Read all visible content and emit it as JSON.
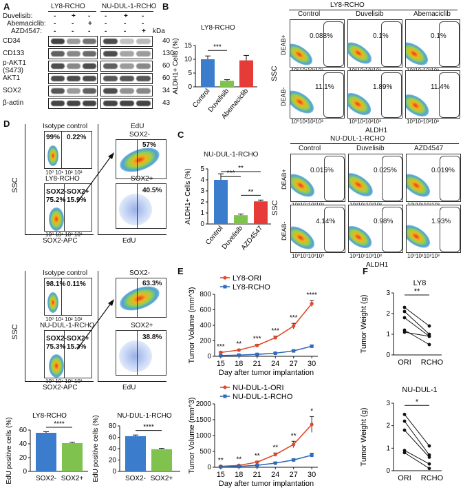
{
  "panels": {
    "a": "A",
    "b": "B",
    "c": "C",
    "d": "D",
    "e": "E",
    "f": "F"
  },
  "panelA": {
    "groups": [
      "LY8-RCHO",
      "NU-DUL-1-RCHO"
    ],
    "treatments": [
      {
        "label": "Duvelisib:",
        "marks": [
          "-",
          "+",
          "-",
          "-",
          "+",
          "-"
        ]
      },
      {
        "label": "Abemaciclib:",
        "marks": [
          "-",
          "-",
          "+",
          "-",
          "-",
          "-"
        ]
      },
      {
        "label": "AZD4547:",
        "marks": [
          "-",
          "-",
          "-",
          "-",
          "-",
          "+"
        ]
      }
    ],
    "kda_label": "kDa",
    "proteins": [
      {
        "name": "CD34",
        "kda": "40"
      },
      {
        "name": "CD133",
        "kda": "130"
      },
      {
        "name": "p-AKT1\n(S473)",
        "kda": "60"
      },
      {
        "name": "AKT1",
        "kda": "60"
      },
      {
        "name": "SOX2",
        "kda": "34"
      },
      {
        "name": "β-actin",
        "kda": "43"
      }
    ]
  },
  "panelB": {
    "bar": {
      "title": "LY8-RCHO",
      "ylabel": "ALDH1+ Cells (%)",
      "yticks": [
        "0",
        "5",
        "10",
        "15"
      ],
      "sig": "***"
    },
    "facs": {
      "title": "LY8-RCHO",
      "cols": [
        "Control",
        "Duvelisib",
        "Abemaciclib"
      ],
      "rows": [
        "DEAB+",
        "DEAB-"
      ],
      "values": [
        "0.088%",
        "0.1%",
        "0.1%",
        "11.1%",
        "1.89%",
        "11.4%"
      ],
      "ylabel": "SSC",
      "xlabel": "ALDH1",
      "xticks": "10⁰10¹10²10³"
    }
  },
  "panelC": {
    "bar": {
      "title": "NU-DUL-1-RCHO",
      "ylabel": "ALDH1+ Cells (%)",
      "yticks": [
        "0",
        "1",
        "2",
        "3",
        "4",
        "5"
      ],
      "sig": [
        "***",
        "**",
        "**"
      ]
    },
    "facs": {
      "title": "NU-DUL-1-RCHO",
      "cols": [
        "Control",
        "Duvelisib",
        "AZD4547"
      ],
      "rows": [
        "DEAB+",
        "DEAB-"
      ],
      "values": [
        "0.015%",
        "0.025%",
        "0.019%",
        "4.14%",
        "0.98%",
        "1.93%"
      ],
      "ylabel": "SSC",
      "xlabel": "ALDH1"
    }
  },
  "panelD": {
    "top": {
      "isotype": "Isotype control",
      "iso_left": "99%",
      "iso_right": "0.22%",
      "cell": "LY8-RCHO",
      "sox2neg": "SOX2-",
      "sox2neg_val": "75.2%",
      "sox2pos": "SOX2+",
      "sox2pos_val": "15.9%",
      "edu_neg_title": "SOX2-",
      "edu_neg_title_top": "EdU",
      "edu_neg_val": "57%",
      "edu_pos_title": "SOX2+",
      "edu_pos_val": "40.5%"
    },
    "bottom": {
      "isotype": "Isotype control",
      "iso_left": "98.1%",
      "iso_right": "0.11%",
      "cell": "NU-DUL-1-RCHO",
      "sox2neg": "SOX2-",
      "sox2neg_val": "75.3%",
      "sox2pos": "SOX2+",
      "sox2pos_val": "15.3%",
      "edu_neg_title": "SOX2-",
      "edu_neg_val": "63.3%",
      "edu_pos_title": "SOX2+",
      "edu_pos_val": "38.8%"
    },
    "ylabel": "SSC",
    "xlabel_left": "SOX2-APC",
    "xlabel_right": "EdU",
    "bars": [
      {
        "title": "LY8-RCHO",
        "ylabel": "EdU positive cells (%)",
        "yticks": [
          "0",
          "20",
          "40",
          "60"
        ],
        "cats": [
          "SOX2-",
          "SOX2+"
        ],
        "sig": "****"
      },
      {
        "title": "NU-DUL-1-RCHO",
        "ylabel": "EdU positive cells (%)",
        "yticks": [
          "0",
          "20",
          "40",
          "60",
          "80"
        ],
        "cats": [
          "SOX2-",
          "SOX2+"
        ],
        "sig": "****"
      }
    ]
  },
  "panelE": {
    "top": {
      "legend": [
        "LY8-ORI",
        "LY8-RCHO"
      ],
      "ylabel": "Tumor Volume (mm^3)",
      "xlabel": "Day after tumor implantation",
      "xticks": [
        "15",
        "18",
        "21",
        "24",
        "27",
        "30"
      ],
      "yticks": [
        "0",
        "200",
        "400",
        "600",
        "800"
      ],
      "sig": [
        "***",
        "**",
        "***",
        "***",
        "***",
        "****"
      ]
    },
    "bottom": {
      "legend": [
        "NU-DUL-1-ORI",
        "NU-DUL-1-RCHO"
      ],
      "ylabel": "Tumor Volume (mm^3)",
      "xlabel": "Day after tumor implantation",
      "xticks": [
        "15",
        "18",
        "21",
        "24",
        "27",
        "30"
      ],
      "yticks": [
        "0",
        "500",
        "1000",
        "1500",
        "2000"
      ],
      "sig": [
        "**",
        "**",
        "**",
        "**",
        "**",
        "*"
      ]
    }
  },
  "panelF": {
    "top": {
      "title": "LY8",
      "ylabel": "Tumor Weight (g)",
      "yticks": [
        "0",
        "1",
        "2",
        "3"
      ],
      "sig": "**",
      "cats": [
        "ORI",
        "RCHO"
      ]
    },
    "bottom": {
      "title": "NU-DUL-1",
      "ylabel": "Tumor Weight (g)",
      "yticks": [
        "0",
        "1",
        "2",
        "3"
      ],
      "sig": "*",
      "cats": [
        "ORI",
        "RCHO"
      ]
    }
  },
  "chart_data": [
    {
      "type": "bar",
      "title": "LY8-RCHO",
      "ylabel": "ALDH1+ Cells (%)",
      "categories": [
        "Control",
        "Duvelisib",
        "Abemaciclib"
      ],
      "values": [
        10,
        2.2,
        9.6
      ],
      "errors": [
        1.2,
        0.4,
        1.8
      ],
      "ylim": [
        0,
        15
      ],
      "colors": [
        "#3b7ccc",
        "#7fc24d",
        "#e63b36"
      ]
    },
    {
      "type": "bar",
      "title": "NU-DUL-1-RCHO",
      "ylabel": "ALDH1+ Cells (%)",
      "categories": [
        "Control",
        "Duvelisib",
        "AZD4547"
      ],
      "values": [
        4.0,
        0.8,
        2.05
      ],
      "errors": [
        0.55,
        0.1,
        0.12
      ],
      "ylim": [
        0,
        5
      ],
      "colors": [
        "#3b7ccc",
        "#7fc24d",
        "#e63b36"
      ]
    },
    {
      "type": "bar",
      "title": "LY8-RCHO",
      "ylabel": "EdU positive cells (%)",
      "categories": [
        "SOX2-",
        "SOX2+"
      ],
      "values": [
        56,
        41
      ],
      "errors": [
        1.5,
        1.5
      ],
      "ylim": [
        0,
        60
      ],
      "colors": [
        "#3b7ccc",
        "#7fc24d"
      ]
    },
    {
      "type": "bar",
      "title": "NU-DUL-1-RCHO",
      "ylabel": "EdU positive cells (%)",
      "categories": [
        "SOX2-",
        "SOX2+"
      ],
      "values": [
        62,
        39
      ],
      "errors": [
        2,
        1.5
      ],
      "ylim": [
        0,
        80
      ],
      "colors": [
        "#3b7ccc",
        "#7fc24d"
      ]
    },
    {
      "type": "line",
      "ylabel": "Tumor Volume (mm^3)",
      "xlabel": "Day after tumor implantation",
      "x": [
        15,
        18,
        21,
        24,
        27,
        30
      ],
      "ylim": [
        0,
        800
      ],
      "series": [
        {
          "name": "LY8-ORI",
          "values": [
            50,
            80,
            140,
            240,
            390,
            680
          ],
          "errors": [
            5,
            8,
            15,
            20,
            35,
            40
          ],
          "color": "#e04a2a"
        },
        {
          "name": "LY8-RCHO",
          "values": [
            10,
            15,
            25,
            40,
            70,
            130
          ],
          "errors": [
            2,
            3,
            4,
            6,
            8,
            15
          ],
          "color": "#2f6bbf"
        }
      ]
    },
    {
      "type": "line",
      "ylabel": "Tumor Volume (mm^3)",
      "xlabel": "Day after tumor implantation",
      "x": [
        15,
        18,
        21,
        24,
        27,
        30
      ],
      "ylim": [
        0,
        2000
      ],
      "series": [
        {
          "name": "NU-DUL-1-ORI",
          "values": [
            30,
            60,
            160,
            400,
            720,
            1350
          ],
          "errors": [
            10,
            15,
            30,
            50,
            100,
            250
          ],
          "color": "#e04a2a"
        },
        {
          "name": "NU-DUL-1-RCHO",
          "values": [
            15,
            30,
            60,
            130,
            230,
            380
          ],
          "errors": [
            5,
            8,
            10,
            20,
            30,
            60
          ],
          "color": "#2f6bbf"
        }
      ]
    },
    {
      "type": "scatter",
      "title": "LY8",
      "ylabel": "Tumor Weight (g)",
      "categories": [
        "ORI",
        "RCHO"
      ],
      "ylim": [
        0,
        3
      ],
      "pairs": [
        [
          2.3,
          1.4
        ],
        [
          2.1,
          1.0
        ],
        [
          1.8,
          0.9
        ],
        [
          1.2,
          0.5
        ],
        [
          1.1,
          0.9
        ]
      ]
    },
    {
      "type": "scatter",
      "title": "NU-DUL-1",
      "ylabel": "Tumor Weight (g)",
      "categories": [
        "ORI",
        "RCHO"
      ],
      "ylim": [
        0,
        3
      ],
      "pairs": [
        [
          2.5,
          1.1
        ],
        [
          2.2,
          0.7
        ],
        [
          1.8,
          0.6
        ],
        [
          0.9,
          0.3
        ],
        [
          0.8,
          0.1
        ]
      ]
    }
  ]
}
